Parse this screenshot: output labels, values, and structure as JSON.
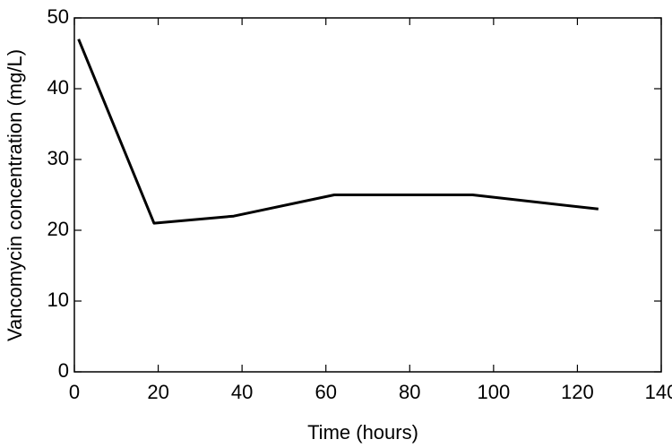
{
  "chart_data": {
    "type": "line",
    "x_label": "Time (hours)",
    "y_label": "Vancomycin concentration (mg/L)",
    "x": [
      1,
      19,
      38,
      62,
      95,
      125
    ],
    "series": [
      {
        "color": "#000000",
        "values": [
          47,
          21,
          22,
          25,
          25,
          23
        ]
      }
    ],
    "xlim": [
      0,
      140
    ],
    "xticks": [
      0,
      20,
      40,
      60,
      80,
      100,
      120,
      140
    ],
    "ylim": [
      0,
      50
    ],
    "yticks": [
      0,
      10,
      20,
      30,
      40,
      50
    ],
    "grid": false
  }
}
